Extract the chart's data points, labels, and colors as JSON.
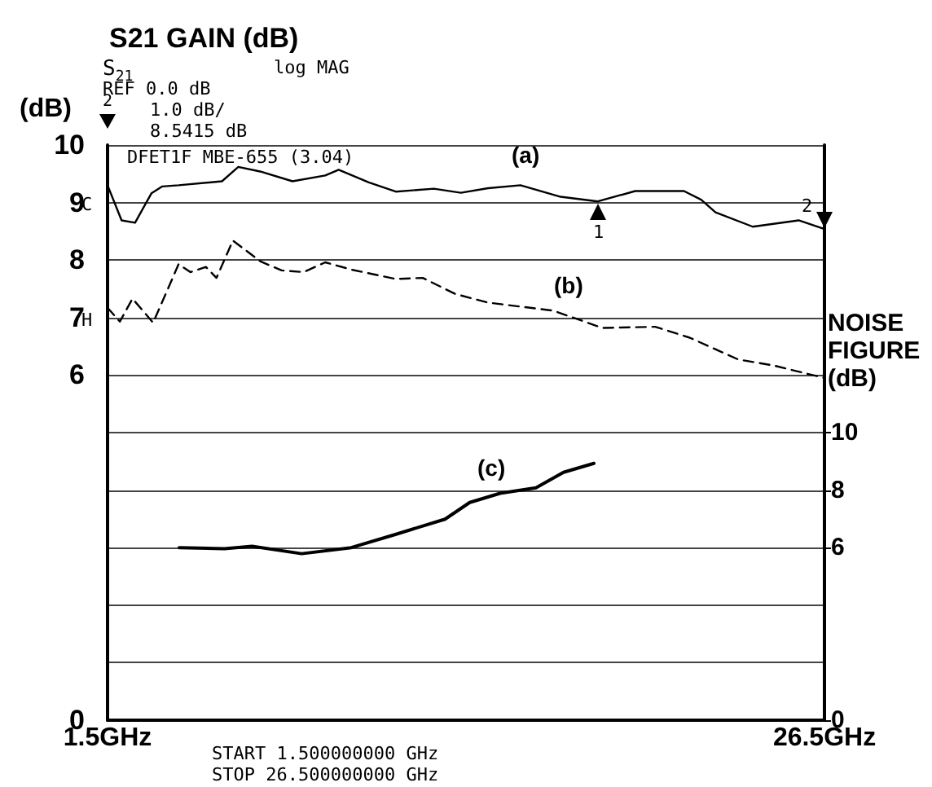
{
  "chart_data": {
    "type": "line",
    "title": "S21 GAIN (dB)",
    "ylabel": "(dB)",
    "y2label": "NOISE FIGURE (dB)",
    "xlim": [
      1.5,
      26.5
    ],
    "xticks": [
      {
        "value": 1.5,
        "label": "1.5GHz"
      },
      {
        "value": 26.5,
        "label": "26.5GHz"
      }
    ],
    "ylim": [
      0,
      10
    ],
    "yticks": [
      0,
      {
        "value": 1,
        "label": null
      },
      {
        "value": 2,
        "label": null
      },
      {
        "value": 3,
        "label": null
      },
      {
        "value": 4,
        "label": null
      },
      {
        "value": 5,
        "label": null
      },
      6,
      7,
      8,
      9,
      10
    ],
    "y2lim": [
      0,
      20
    ],
    "y2ticks": [
      0,
      6,
      8,
      10
    ],
    "grid": "y",
    "marker": "none",
    "series": [
      {
        "color": "#000000",
        "line_style": "solid",
        "x": [
          1.5,
          1.99,
          2.46,
          3.03,
          3.41,
          3.98,
          5.49,
          6.06,
          6.82,
          7.95,
          9.09,
          9.56,
          10.61,
          11.55,
          12.88,
          13.82,
          14.77,
          15.9,
          17.3,
          18.6,
          19.9,
          21.6,
          22.2,
          22.7,
          24.0,
          25.6,
          26.5
        ],
        "values": [
          9.3,
          8.69,
          8.65,
          9.16,
          9.28,
          9.3,
          9.37,
          9.62,
          9.54,
          9.37,
          9.47,
          9.57,
          9.35,
          9.19,
          9.24,
          9.17,
          9.25,
          9.3,
          9.1,
          9.02,
          9.2,
          9.2,
          9.05,
          8.83,
          8.58,
          8.69,
          8.54
        ]
      },
      {
        "color": "#000000",
        "line_style": "dashed",
        "x": [
          1.5,
          1.93,
          2.37,
          3.09,
          3.98,
          4.39,
          4.93,
          5.3,
          5.87,
          6.82,
          7.57,
          8.34,
          9.09,
          10.04,
          11.55,
          12.49,
          13.63,
          14.77,
          17.05,
          18.75,
          20.6,
          21.8,
          23.5,
          24.7,
          26.5
        ],
        "values": [
          7.17,
          6.93,
          7.33,
          6.91,
          7.93,
          7.79,
          7.88,
          7.69,
          8.34,
          7.98,
          7.82,
          7.79,
          7.96,
          7.83,
          7.67,
          7.69,
          7.41,
          7.26,
          7.12,
          6.82,
          6.84,
          6.65,
          6.27,
          6.17,
          5.95
        ]
      },
      {
        "color": "#000000",
        "line_style": "solid",
        "axis": "y2",
        "x": [
          4.0,
          5.58,
          6.54,
          8.27,
          10.0,
          11.54,
          13.27,
          14.13,
          15.19,
          16.44,
          17.4,
          18.46
        ],
        "values": [
          6.0,
          5.96,
          6.05,
          5.79,
          6.0,
          6.46,
          6.99,
          7.57,
          7.89,
          8.08,
          8.62,
          8.93
        ]
      }
    ],
    "annotations": [
      "S$_{21}$",
      "log MAG",
      "REF 0.0 dB",
      "1.0 dB/",
      "8.5415 dB",
      "2",
      "DFET1F MBE-655 (3.04)",
      "C",
      "H",
      "START 1.500000000 GHz",
      "STOP 26.500000000 GHz",
      "(a)",
      "(b)",
      "(c)",
      {
        "text": "1",
        "x": 18.6,
        "y": 9.02
      },
      {
        "text": "2",
        "x": 26.5,
        "y": 8.54
      }
    ]
  }
}
